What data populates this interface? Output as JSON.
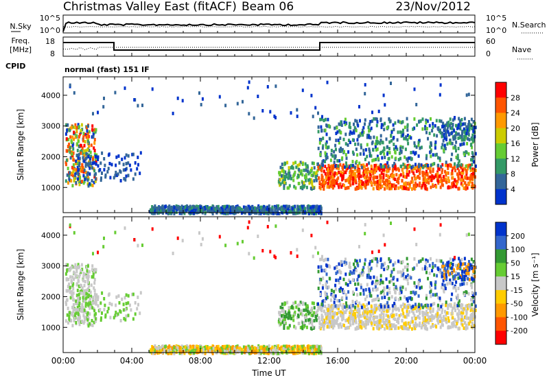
{
  "header": {
    "title": "Christmas Valley East (fitACF)",
    "beam": "Beam 06",
    "date": "23/Nov/2012"
  },
  "nsky_panel": {
    "left_label": "N.Sky",
    "left_ticks": [
      "10^5",
      "10^0"
    ],
    "right_label": "N.Search",
    "right_ticks": [
      "10^5",
      "10^0"
    ]
  },
  "freq_panel": {
    "left_label_1": "Freq.",
    "left_label_2": "[MHz]",
    "left_ticks": [
      "18",
      "8"
    ],
    "right_label": "Nave",
    "right_ticks": [
      "60",
      "0"
    ],
    "cpid_label": "CPID",
    "cpid_text": "normal (fast) 151 IF"
  },
  "chart_data": [
    {
      "type": "heatmap",
      "name": "power",
      "ylabel": "Slant Range [km]",
      "xlabel": "Time UT",
      "yticks": [
        "1000",
        "2000",
        "3000",
        "4000"
      ],
      "xticks": [
        "00:00",
        "04:00",
        "08:00",
        "12:00",
        "16:00",
        "20:00",
        "00:00"
      ],
      "x_range_hours": [
        0,
        24
      ],
      "y_range_km": [
        180,
        4600
      ],
      "colorbar_label": "Power [dB]",
      "colorbar_ticks": [
        "28",
        "24",
        "20",
        "16",
        "12",
        "8",
        "4"
      ],
      "colorbar_colors": [
        "#ff0000",
        "#ff5500",
        "#ff9900",
        "#cccc00",
        "#66cc33",
        "#339966",
        "#336699",
        "#0033cc"
      ]
    },
    {
      "type": "heatmap",
      "name": "velocity",
      "ylabel": "Slant Range [km]",
      "xlabel": "Time UT",
      "yticks": [
        "1000",
        "2000",
        "3000",
        "4000"
      ],
      "xticks": [
        "00:00",
        "04:00",
        "08:00",
        "12:00",
        "16:00",
        "20:00",
        "00:00"
      ],
      "x_range_hours": [
        0,
        24
      ],
      "y_range_km": [
        180,
        4600
      ],
      "colorbar_label": "Velocity [m s⁻¹]",
      "colorbar_ticks": [
        "200",
        "100",
        "50",
        "15",
        "-15",
        "-50",
        "-100",
        "-200"
      ],
      "colorbar_colors": [
        "#0033cc",
        "#3366cc",
        "#339933",
        "#66cc33",
        "#c8c8c8",
        "#ffcc00",
        "#ff9900",
        "#ff5500",
        "#ff0000"
      ]
    }
  ],
  "time_axis_label": "Time UT"
}
